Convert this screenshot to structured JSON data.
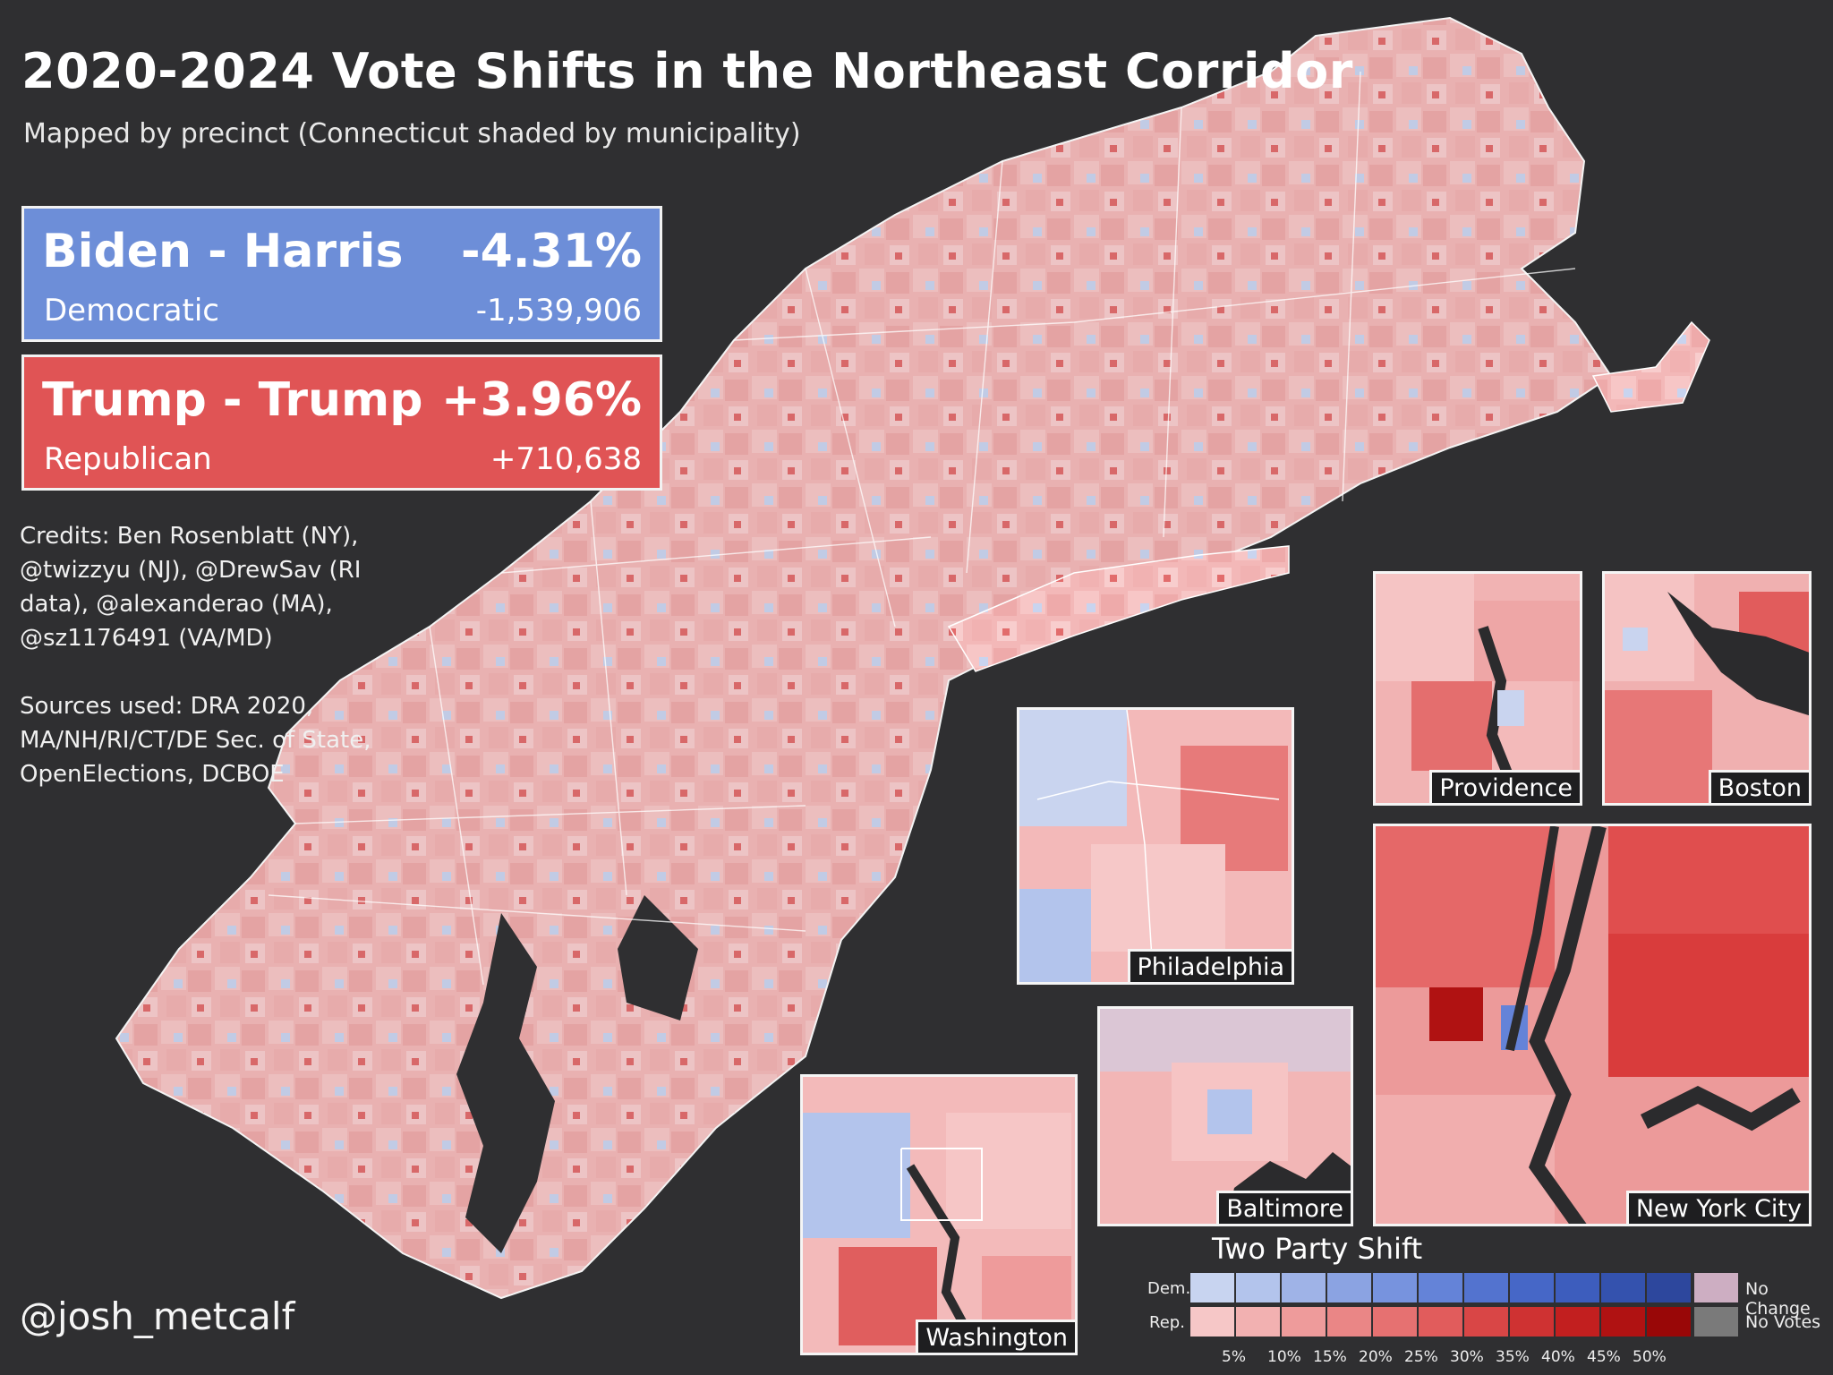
{
  "title": "2020-2024 Vote Shifts in the Northeast Corridor",
  "subtitle": "Mapped by precinct (Connecticut shaded by municipality)",
  "candidates": {
    "dem": {
      "name": "Biden - Harris",
      "pct": "-4.31%",
      "party": "Democratic",
      "votes": "-1,539,906",
      "color": "#6d8ed8"
    },
    "rep": {
      "name": "Trump - Trump",
      "pct": "+3.96%",
      "party": "Republican",
      "votes": "+710,638",
      "color": "#e05455"
    }
  },
  "credits": "Credits: Ben Rosenblatt (NY), @twizzyu (NJ), @DrewSav (RI data), @alexanderao (MA), @sz1176491 (VA/MD)\n\nSources used: DRA 2020, MA/NH/RI/CT/DE Sec. of State, OpenElections, DCBOE",
  "signature": "@josh_metcalf",
  "insets": {
    "providence": "Providence",
    "boston": "Boston",
    "philadelphia": "Philadelphia",
    "new_york": "New York City",
    "baltimore": "Baltimore",
    "washington": "Washington"
  },
  "legend": {
    "title": "Two Party Shift",
    "dem_label": "Dem.",
    "rep_label": "Rep.",
    "ticks": [
      "5%",
      "10%",
      "15%",
      "20%",
      "25%",
      "30%",
      "35%",
      "40%",
      "45%",
      "50%"
    ],
    "dem_colors": [
      "#c8d4f0",
      "#b3c4ec",
      "#9fb3e7",
      "#8ba3e2",
      "#7793de",
      "#6483d8",
      "#5373cf",
      "#4667c7",
      "#3d5dbd",
      "#3452ae",
      "#2d479d"
    ],
    "rep_colors": [
      "#f6c7c7",
      "#f2b1b1",
      "#ee9b9b",
      "#ea8686",
      "#e67171",
      "#e15c5c",
      "#d94646",
      "#cf3232",
      "#c21f1f",
      "#b01212",
      "#990707"
    ],
    "no_change_label": "No Change",
    "no_votes_label": "No Votes",
    "no_change_color": "#cdaec2",
    "no_votes_color": "#7a7a7a"
  }
}
